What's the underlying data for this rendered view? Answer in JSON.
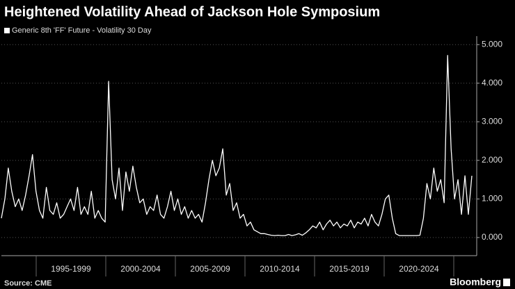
{
  "chart_data": {
    "type": "line",
    "title": "Heightened Volatility Ahead of Jackson Hole Symposium",
    "source": "Source: CME",
    "brand": "Bloomberg",
    "x_labels": [
      "1995-1999",
      "2000-2004",
      "2005-2009",
      "2010-2014",
      "2015-2019",
      "2020-2024"
    ],
    "series": [
      {
        "name": "Generic 8th 'FF' Future - Volatility 30 Day",
        "color": "#ffffff",
        "values": [
          0.5,
          1.0,
          1.8,
          1.2,
          0.8,
          1.0,
          0.7,
          1.1,
          1.6,
          2.15,
          1.2,
          0.7,
          0.5,
          1.3,
          0.7,
          0.6,
          0.9,
          0.5,
          0.6,
          0.8,
          1.0,
          0.7,
          1.3,
          0.6,
          0.8,
          0.6,
          1.2,
          0.5,
          0.7,
          0.5,
          0.4,
          4.05,
          1.5,
          1.0,
          1.8,
          0.7,
          1.7,
          1.2,
          1.85,
          1.3,
          0.9,
          1.0,
          0.6,
          0.8,
          0.7,
          1.1,
          0.6,
          0.5,
          0.8,
          1.2,
          0.7,
          1.0,
          0.6,
          0.8,
          0.5,
          0.7,
          0.5,
          0.6,
          0.4,
          0.9,
          1.5,
          2.0,
          1.6,
          1.8,
          2.3,
          1.1,
          1.4,
          0.7,
          0.9,
          0.5,
          0.6,
          0.3,
          0.4,
          0.2,
          0.15,
          0.1,
          0.1,
          0.08,
          0.06,
          0.05,
          0.06,
          0.05,
          0.05,
          0.08,
          0.05,
          0.07,
          0.1,
          0.06,
          0.12,
          0.2,
          0.3,
          0.25,
          0.4,
          0.2,
          0.35,
          0.45,
          0.3,
          0.4,
          0.25,
          0.35,
          0.3,
          0.45,
          0.25,
          0.4,
          0.35,
          0.5,
          0.3,
          0.6,
          0.4,
          0.3,
          0.6,
          1.0,
          1.1,
          0.5,
          0.1,
          0.05,
          0.05,
          0.05,
          0.05,
          0.05,
          0.05,
          0.06,
          0.5,
          1.4,
          1.0,
          1.8,
          1.2,
          1.5,
          0.9,
          4.72,
          2.3,
          1.0,
          1.5,
          0.6,
          1.6,
          0.6,
          1.6
        ]
      }
    ],
    "ylim": [
      -0.47,
      5.22
    ],
    "yticks": [
      {
        "value": 0,
        "label": "0.000"
      },
      {
        "value": 1,
        "label": "1.000"
      },
      {
        "value": 2,
        "label": "2.000"
      },
      {
        "value": 3,
        "label": "3.000"
      },
      {
        "value": 4,
        "label": "4.000"
      },
      {
        "value": 5,
        "label": "5.000"
      }
    ],
    "grid": true
  }
}
